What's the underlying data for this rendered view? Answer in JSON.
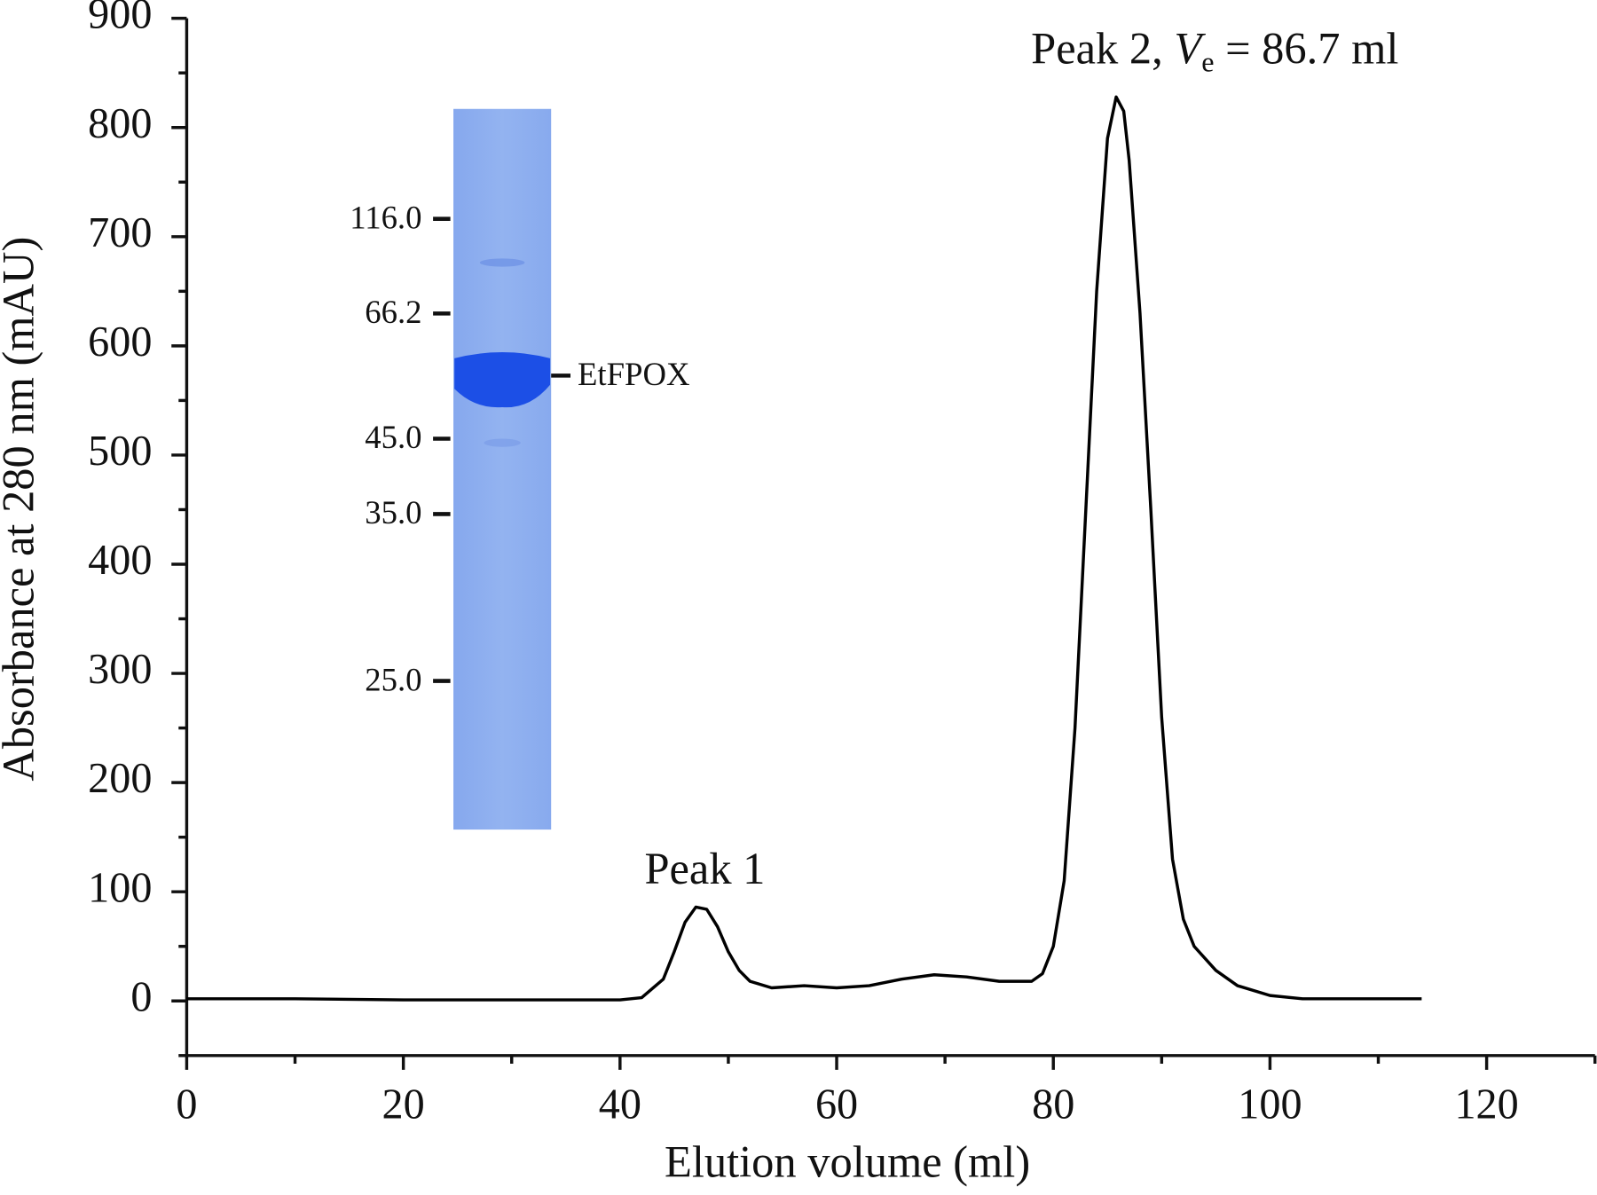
{
  "chart_data": {
    "type": "line",
    "xlabel": "Elution volume (ml)",
    "ylabel": "Absorbance at 280 nm (mAU)",
    "x": [
      0,
      10,
      20,
      30,
      40,
      42,
      44,
      45,
      46,
      47,
      48,
      49,
      50,
      51,
      52,
      54,
      57,
      60,
      63,
      66,
      69,
      72,
      75,
      78,
      79,
      80,
      81,
      82,
      83,
      84,
      85,
      85.8,
      86.5,
      87,
      88,
      89,
      90,
      91,
      92,
      93,
      95,
      97,
      100,
      103,
      114
    ],
    "values": [
      2,
      2,
      1,
      1,
      1,
      3,
      20,
      45,
      72,
      86,
      84,
      68,
      45,
      28,
      18,
      12,
      14,
      12,
      14,
      20,
      24,
      22,
      18,
      18,
      25,
      50,
      110,
      250,
      450,
      650,
      790,
      828,
      815,
      770,
      630,
      450,
      260,
      130,
      75,
      50,
      28,
      14,
      5,
      2,
      2
    ],
    "color": "#000000",
    "xlim": [
      0,
      130
    ],
    "ylim": [
      -50,
      900
    ],
    "xticks": [
      0,
      20,
      40,
      60,
      80,
      100,
      120
    ],
    "yticks": [
      0,
      100,
      200,
      300,
      400,
      500,
      600,
      700,
      800,
      900
    ],
    "xminorticks": [
      10,
      30,
      50,
      70,
      90,
      110,
      130
    ],
    "yminorticks": [
      -50,
      50,
      150,
      250,
      350,
      450,
      550,
      650,
      750,
      850
    ],
    "annotations": {
      "peak1": "Peak 1",
      "peak2": {
        "prefix": "Peak 2, ",
        "symbol": "V",
        "subscript": "e",
        "suffix": " = 86.7 ml"
      }
    },
    "inset": {
      "marker_labels": [
        "116.0",
        "66.2",
        "45.0",
        "35.0",
        "25.0"
      ],
      "band_label": "EtFPOX"
    }
  }
}
